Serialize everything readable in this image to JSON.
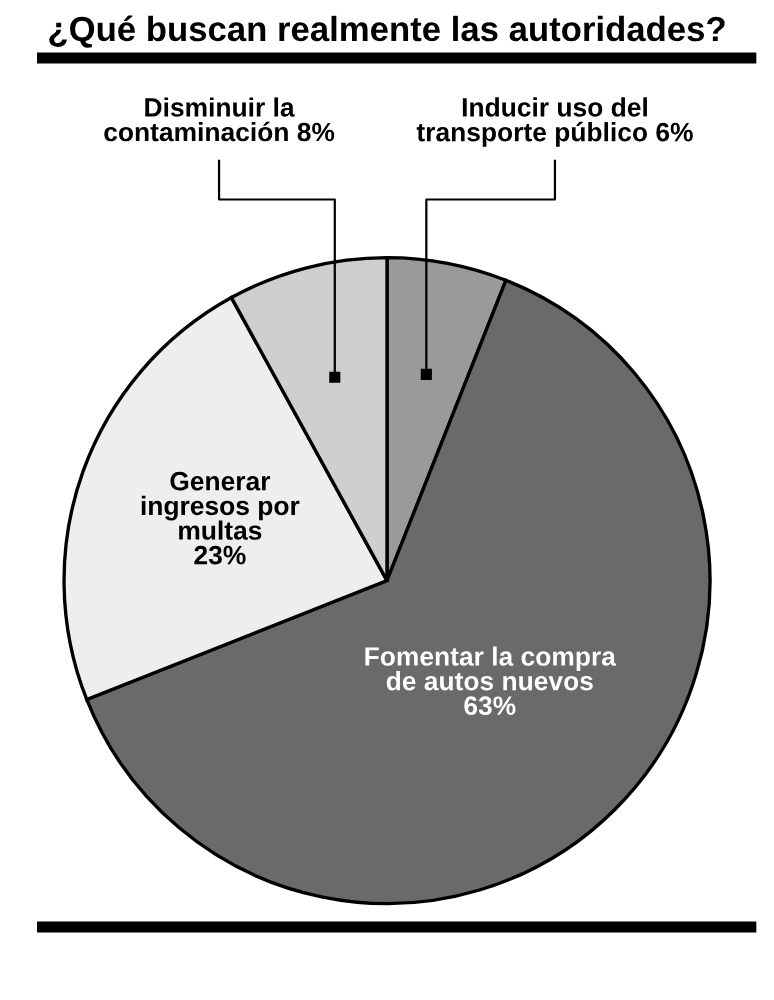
{
  "chart_data": {
    "type": "pie",
    "title": "¿Qué buscan realmente las autoridades?",
    "categories": [
      "Inducir uso del\ntransporte público",
      "Fomentar la compra\nde autos nuevos",
      "Generar\ningresos por\nmultas",
      "Disminuir la\ncontaminación"
    ],
    "values": [
      6,
      63,
      23,
      8
    ],
    "colors": [
      "#9a9a9a",
      "#6a6a6a",
      "#eeeeee",
      "#cfcfcf"
    ],
    "value_labels": [
      "6%",
      "63%",
      "23%",
      "8%"
    ]
  }
}
